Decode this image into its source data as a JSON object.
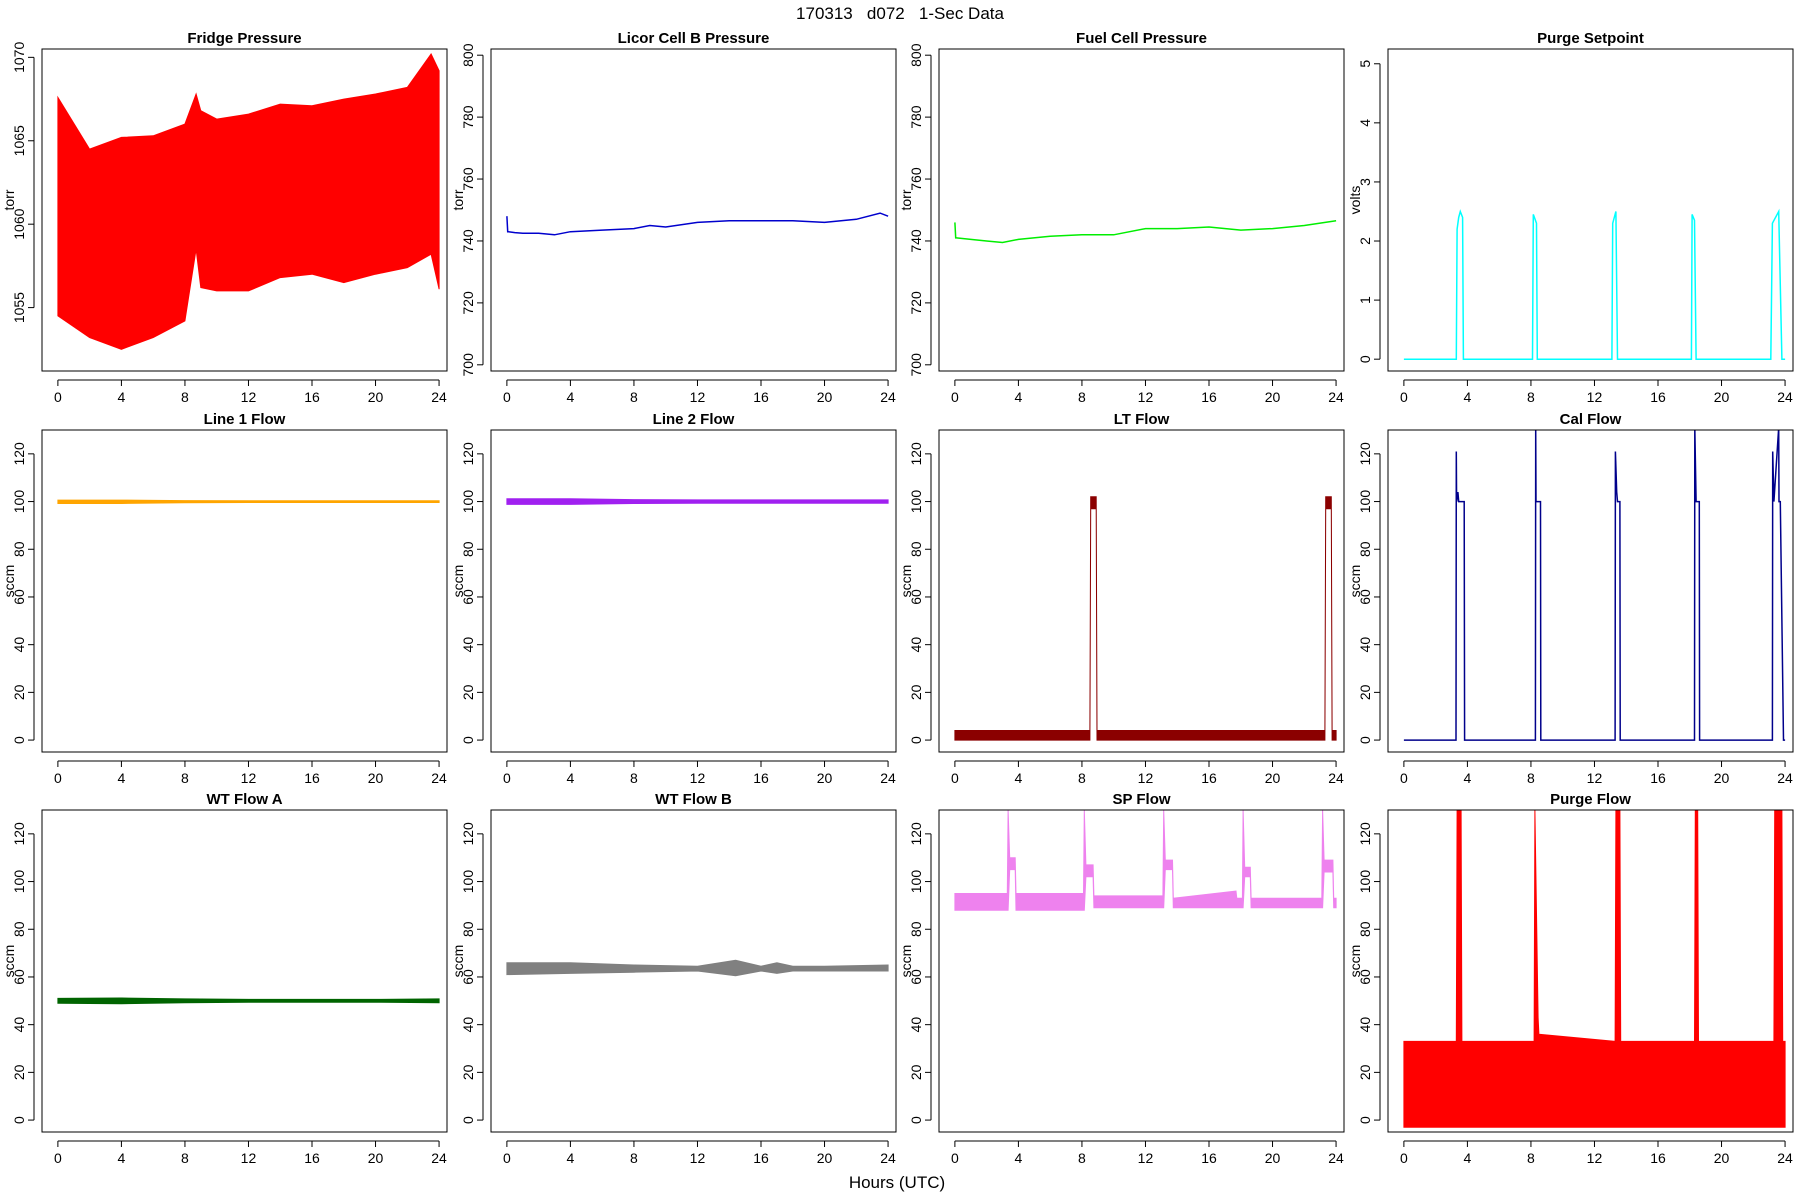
{
  "figure": {
    "title": "170313   d072   1-Sec Data",
    "xlabel": "Hours (UTC)"
  },
  "chart_data": [
    {
      "type": "line",
      "title": "Fridge Pressure",
      "ylabel": "torr",
      "color": "#ff0000",
      "xlim": [
        -1,
        24.5
      ],
      "ylim": [
        1051.2,
        1070.5
      ],
      "xticks": [
        0,
        4,
        8,
        12,
        16,
        20,
        24
      ],
      "yticks": [
        1055,
        1060,
        1065,
        1070
      ],
      "series": [
        {
          "x": [
            0,
            2,
            4,
            6,
            8,
            8.7,
            9,
            10,
            12,
            14,
            16,
            18,
            20,
            22,
            23.5,
            24
          ],
          "y_max": [
            1067.6,
            1064.5,
            1065.2,
            1065.3,
            1066,
            1067.8,
            1066.8,
            1066.3,
            1066.6,
            1067.2,
            1067.1,
            1067.5,
            1067.8,
            1068.2,
            1070.2,
            1069.2
          ],
          "y_min": [
            1054.5,
            1053.2,
            1052.5,
            1053.2,
            1054.2,
            1058.5,
            1056.2,
            1056,
            1056,
            1056.8,
            1057,
            1056.5,
            1057,
            1057.4,
            1058.2,
            1056.1
          ]
        }
      ]
    },
    {
      "type": "line",
      "title": "Licor Cell B Pressure",
      "ylabel": "torr",
      "color": "#0000cd",
      "xlim": [
        -1,
        24.5
      ],
      "ylim": [
        698,
        802
      ],
      "xticks": [
        0,
        4,
        8,
        12,
        16,
        20,
        24
      ],
      "yticks": [
        700,
        720,
        740,
        760,
        780,
        800
      ],
      "series": [
        {
          "x": [
            0,
            0.05,
            0.1,
            0.5,
            1,
            2,
            3,
            4,
            6,
            8,
            9,
            10,
            12,
            14,
            16,
            18,
            20,
            22,
            23.5,
            24
          ],
          "y": [
            748,
            743,
            743,
            742.7,
            742.5,
            742.5,
            742,
            743,
            743.5,
            744,
            745,
            744.5,
            746,
            746.5,
            746.5,
            746.5,
            746,
            747,
            749,
            748
          ]
        }
      ]
    },
    {
      "type": "line",
      "title": "Fuel Cell Pressure",
      "ylabel": "torr",
      "color": "#00ee00",
      "xlim": [
        -1,
        24.5
      ],
      "ylim": [
        698,
        802
      ],
      "xticks": [
        0,
        4,
        8,
        12,
        16,
        20,
        24
      ],
      "yticks": [
        700,
        720,
        740,
        760,
        780,
        800
      ],
      "series": [
        {
          "x": [
            0,
            0.05,
            0.1,
            1,
            2,
            3,
            4,
            6,
            8,
            10,
            12,
            14,
            16,
            18,
            20,
            22,
            24
          ],
          "y": [
            746,
            741,
            741,
            740.5,
            740,
            739.5,
            740.5,
            741.5,
            742,
            742,
            744,
            744,
            744.5,
            743.5,
            744,
            745,
            746.5
          ]
        }
      ]
    },
    {
      "type": "line",
      "title": "Purge Setpoint",
      "ylabel": "volts",
      "color": "#00ffff",
      "xlim": [
        -1,
        24.5
      ],
      "ylim": [
        -0.2,
        5.25
      ],
      "xticks": [
        0,
        4,
        8,
        12,
        16,
        20,
        24
      ],
      "yticks": [
        0,
        1,
        2,
        3,
        4,
        5
      ],
      "series": [
        {
          "x": [
            0,
            3.3,
            3.35,
            3.45,
            3.55,
            3.7,
            3.75,
            8.1,
            8.15,
            8.35,
            8.4,
            13.1,
            13.15,
            13.35,
            13.45,
            18.1,
            18.15,
            18.3,
            18.4,
            23.1,
            23.2,
            23.6,
            23.8,
            24
          ],
          "y": [
            0,
            0,
            2.2,
            2.4,
            2.5,
            2.4,
            0,
            0,
            2.45,
            2.3,
            0,
            0,
            2.3,
            2.5,
            0,
            0,
            2.45,
            2.35,
            0,
            0,
            2.3,
            2.5,
            0,
            0
          ]
        }
      ]
    },
    {
      "type": "line",
      "title": "Line 1 Flow",
      "ylabel": "sccm",
      "color": "#ffa500",
      "xlim": [
        -1,
        24.5
      ],
      "ylim": [
        -5,
        130
      ],
      "xticks": [
        0,
        4,
        8,
        12,
        16,
        20,
        24
      ],
      "yticks": [
        0,
        20,
        40,
        60,
        80,
        100,
        120
      ],
      "series": [
        {
          "x": [
            0,
            4,
            8,
            12,
            16,
            20,
            24
          ],
          "y_max": [
            100.6,
            100.6,
            100.4,
            100.3,
            100.3,
            100.3,
            100.3
          ],
          "y_min": [
            99.2,
            99.2,
            99.5,
            99.6,
            99.6,
            99.6,
            99.6
          ]
        }
      ]
    },
    {
      "type": "line",
      "title": "Line 2 Flow",
      "ylabel": "sccm",
      "color": "#a020f0",
      "xlim": [
        -1,
        24.5
      ],
      "ylim": [
        -5,
        130
      ],
      "xticks": [
        0,
        4,
        8,
        12,
        16,
        20,
        24
      ],
      "yticks": [
        0,
        20,
        40,
        60,
        80,
        100,
        120
      ],
      "series": [
        {
          "x": [
            0,
            4,
            8,
            12,
            16,
            20,
            24
          ],
          "y_max": [
            101.2,
            101.2,
            100.8,
            100.7,
            100.7,
            100.7,
            100.7
          ],
          "y_min": [
            98.8,
            98.8,
            99.2,
            99.3,
            99.3,
            99.3,
            99.3
          ]
        }
      ]
    },
    {
      "type": "line",
      "title": "LT Flow",
      "ylabel": "sccm",
      "color": "#8b0000",
      "xlim": [
        -1,
        24.5
      ],
      "ylim": [
        -5,
        130
      ],
      "xticks": [
        0,
        4,
        8,
        12,
        16,
        20,
        24
      ],
      "yticks": [
        0,
        20,
        40,
        60,
        80,
        100,
        120
      ],
      "series": [
        {
          "x": [
            0,
            8.5,
            8.55,
            8.6,
            8.85,
            8.9,
            8.95,
            23.3,
            23.35,
            23.4,
            23.65,
            23.7,
            23.75,
            24
          ],
          "y_max": [
            4,
            4,
            102,
            102,
            102,
            102,
            4,
            4,
            102,
            102,
            102,
            102,
            4,
            4
          ],
          "y_min": [
            0,
            0,
            97,
            97,
            97,
            97,
            0,
            0,
            97,
            97,
            97,
            97,
            0,
            0
          ]
        }
      ]
    },
    {
      "type": "line",
      "title": "Cal Flow",
      "ylabel": "sccm",
      "color": "#00008b",
      "xlim": [
        -1,
        24.5
      ],
      "ylim": [
        -5,
        130
      ],
      "xticks": [
        0,
        4,
        8,
        12,
        16,
        20,
        24
      ],
      "yticks": [
        0,
        20,
        40,
        60,
        80,
        100,
        120
      ],
      "series": [
        {
          "x": [
            0,
            3.28,
            3.3,
            3.32,
            3.4,
            3.45,
            3.5,
            3.8,
            3.82,
            8.28,
            8.3,
            8.32,
            8.4,
            8.6,
            8.62,
            13.3,
            13.32,
            13.4,
            13.45,
            13.6,
            13.62,
            18.3,
            18.32,
            18.4,
            18.6,
            18.62,
            23.2,
            23.22,
            23.3,
            23.6,
            23.62,
            23.7,
            23.9,
            24
          ],
          "y": [
            0,
            0,
            121,
            100,
            104,
            100,
            100,
            100,
            0,
            0,
            131,
            100,
            100,
            100,
            0,
            0,
            121,
            104,
            100,
            100,
            0,
            0,
            131,
            100,
            100,
            0,
            0,
            121,
            100,
            131,
            100,
            100,
            0,
            0
          ]
        }
      ]
    },
    {
      "type": "line",
      "title": "WT Flow A",
      "ylabel": "sccm",
      "color": "#006400",
      "xlim": [
        -1,
        24.5
      ],
      "ylim": [
        -5,
        130
      ],
      "xticks": [
        0,
        4,
        8,
        12,
        16,
        20,
        24
      ],
      "yticks": [
        0,
        20,
        40,
        60,
        80,
        100,
        120
      ],
      "series": [
        {
          "x": [
            0,
            4,
            8,
            12,
            16,
            20,
            24
          ],
          "y_max": [
            51,
            51.2,
            50.8,
            50.6,
            50.6,
            50.6,
            50.8
          ],
          "y_min": [
            49,
            48.8,
            49.2,
            49.4,
            49.4,
            49.4,
            49.2
          ]
        }
      ]
    },
    {
      "type": "line",
      "title": "WT Flow B",
      "ylabel": "sccm",
      "color": "#808080",
      "xlim": [
        -1,
        24.5
      ],
      "ylim": [
        -5,
        130
      ],
      "xticks": [
        0,
        4,
        8,
        12,
        16,
        20,
        24
      ],
      "yticks": [
        0,
        20,
        40,
        60,
        80,
        100,
        120
      ],
      "series": [
        {
          "x": [
            0,
            4,
            8,
            12,
            14.4,
            16,
            17,
            18,
            20,
            24
          ],
          "y_max": [
            66,
            66,
            65,
            64.5,
            67,
            64.5,
            66,
            64.5,
            64.5,
            65
          ],
          "y_min": [
            61,
            61.5,
            62,
            62.5,
            60.5,
            62.5,
            61.5,
            62.5,
            62.5,
            62.5
          ]
        }
      ]
    },
    {
      "type": "line",
      "title": "SP Flow",
      "ylabel": "sccm",
      "color": "#ee82ee",
      "xlim": [
        -1,
        24.5
      ],
      "ylim": [
        -5,
        130
      ],
      "xticks": [
        0,
        4,
        8,
        12,
        16,
        20,
        24
      ],
      "yticks": [
        0,
        20,
        40,
        60,
        80,
        100,
        120
      ],
      "series": [
        {
          "x": [
            0,
            3.3,
            3.35,
            3.45,
            3.8,
            3.85,
            8.1,
            8.15,
            8.25,
            8.7,
            8.75,
            13.1,
            13.15,
            13.25,
            13.7,
            13.75,
            17.7,
            17.75,
            18.1,
            18.15,
            18.25,
            18.6,
            18.65,
            23.1,
            23.15,
            23.25,
            23.8,
            23.85,
            24
          ],
          "y_max": [
            95,
            95,
            130,
            110,
            110,
            95,
            95,
            130,
            107,
            107,
            94,
            94,
            130,
            109,
            109,
            93,
            96,
            93,
            93,
            130,
            106,
            106,
            93,
            93,
            130,
            109,
            109,
            93,
            93
          ],
          "y_min": [
            88,
            88,
            88,
            105,
            105,
            88,
            88,
            88,
            102,
            102,
            89,
            89,
            89,
            105,
            105,
            89,
            89,
            89,
            89,
            89,
            102,
            102,
            89,
            89,
            89,
            104,
            104,
            89,
            89
          ]
        }
      ]
    },
    {
      "type": "area",
      "title": "Purge Flow",
      "ylabel": "sccm",
      "color": "#ff0000",
      "xlim": [
        -1,
        24.5
      ],
      "ylim": [
        -5,
        130
      ],
      "xticks": [
        0,
        4,
        8,
        12,
        16,
        20,
        24
      ],
      "yticks": [
        0,
        20,
        40,
        60,
        80,
        100,
        120
      ],
      "series": [
        {
          "x": [
            0,
            3.3,
            3.35,
            3.6,
            3.65,
            8.2,
            8.25,
            8.45,
            8.5,
            13.3,
            13.35,
            13.6,
            13.65,
            18.3,
            18.35,
            18.5,
            18.55,
            23.3,
            23.35,
            23.8,
            23.85,
            24
          ],
          "y_max": [
            33,
            33,
            130,
            130,
            33,
            33,
            130,
            43,
            36,
            33,
            130,
            130,
            33,
            33,
            130,
            130,
            33,
            33,
            130,
            130,
            33,
            33
          ],
          "y_min": [
            -3,
            -3,
            -3,
            -3,
            -3,
            -3,
            -3,
            -3,
            -3,
            -3,
            -3,
            -3,
            -3,
            -3,
            -3,
            -3,
            -3,
            -3,
            -3,
            -3,
            -3,
            -3
          ]
        }
      ]
    }
  ]
}
